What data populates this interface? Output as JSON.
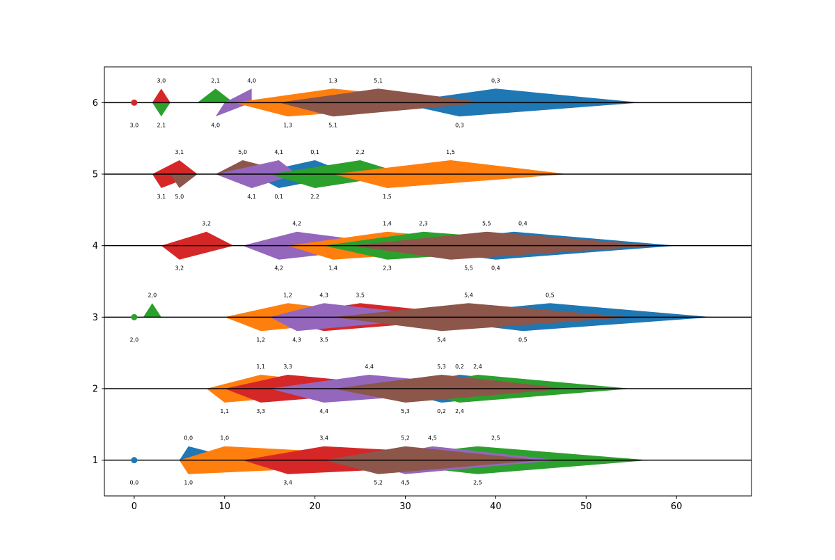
{
  "chart_data": {
    "type": "area",
    "title": "",
    "xlabel": "",
    "ylabel": "",
    "xlim": [
      -3.3,
      68.3
    ],
    "ylim": [
      0.5,
      6.5
    ],
    "x_ticks": [
      0,
      10,
      20,
      30,
      40,
      50,
      60
    ],
    "y_ticks": [
      1,
      2,
      3,
      4,
      5,
      6
    ],
    "grid": false,
    "legend": "none",
    "baselines": [
      1,
      2,
      3,
      4,
      5,
      6
    ],
    "dots": [
      {
        "y": 1,
        "x": 0,
        "color": "#1f77b4",
        "label": "0,0"
      },
      {
        "y": 3,
        "x": 0,
        "color": "#2ca02c",
        "label": "2,0"
      },
      {
        "y": 6,
        "x": 0,
        "color": "#d62728",
        "label": "3,0"
      }
    ],
    "shapes": [
      {
        "y": 1,
        "start": 5,
        "peak_up": 6,
        "peak_down": 6,
        "end": 12,
        "color": "#1f77b4",
        "label": "0,0",
        "bottom_label": "1,0"
      },
      {
        "y": 1,
        "start": 5,
        "peak_up": 10,
        "peak_down": 6,
        "end": 40,
        "color": "#ff7f0e",
        "label": "1,0",
        "bottom_label": "1,0"
      },
      {
        "y": 1,
        "start": 12,
        "peak_up": 21,
        "peak_down": 17,
        "end": 50,
        "color": "#d62728",
        "label": "3,4",
        "bottom_label": "3,4"
      },
      {
        "y": 1,
        "start": 24,
        "peak_up": 38,
        "peak_down": 38,
        "end": 57,
        "color": "#2ca02c",
        "label": "2,5",
        "bottom_label": "2,5"
      },
      {
        "y": 1,
        "start": 25,
        "peak_up": 33,
        "peak_down": 30,
        "end": 47,
        "color": "#9467bd",
        "label": "4,5",
        "bottom_label": "4,5"
      },
      {
        "y": 1,
        "start": 21,
        "peak_up": 30,
        "peak_down": 27,
        "end": 45,
        "color": "#8c564b",
        "label": "5,2",
        "bottom_label": "5,2"
      },
      {
        "y": 2,
        "start": 8,
        "peak_up": 14,
        "peak_down": 10,
        "end": 28,
        "color": "#ff7f0e",
        "label": "1,1",
        "bottom_label": "1,1"
      },
      {
        "y": 2,
        "start": 10,
        "peak_up": 17,
        "peak_down": 14,
        "end": 33,
        "color": "#d62728",
        "label": "3,3",
        "bottom_label": "3,3"
      },
      {
        "y": 2,
        "start": 15,
        "peak_up": 26,
        "peak_down": 21,
        "end": 42,
        "color": "#9467bd",
        "label": "4,4",
        "bottom_label": "4,4"
      },
      {
        "y": 2,
        "start": 28,
        "peak_up": 36,
        "peak_down": 34,
        "end": 50,
        "color": "#1f77b4",
        "label": "0,2",
        "bottom_label": "0,2"
      },
      {
        "y": 2,
        "start": 30,
        "peak_up": 38,
        "peak_down": 36,
        "end": 55,
        "color": "#2ca02c",
        "label": "2,4",
        "bottom_label": "2,4"
      },
      {
        "y": 2,
        "start": 22,
        "peak_up": 34,
        "peak_down": 30,
        "end": 48,
        "color": "#8c564b",
        "label": "5,3",
        "bottom_label": "5,3"
      },
      {
        "y": 3,
        "start": 1,
        "peak_up": 2,
        "peak_down": 2,
        "end": 3,
        "color": "#2ca02c",
        "label": "2,0",
        "bottom_label": "",
        "up_only": true
      },
      {
        "y": 3,
        "start": 10,
        "peak_up": 17,
        "peak_down": 14,
        "end": 30,
        "color": "#ff7f0e",
        "label": "1,2",
        "bottom_label": "1,2"
      },
      {
        "y": 3,
        "start": 15,
        "peak_up": 25,
        "peak_down": 21,
        "end": 40,
        "color": "#d62728",
        "label": "3,5",
        "bottom_label": "3,5"
      },
      {
        "y": 3,
        "start": 15,
        "peak_up": 21,
        "peak_down": 18,
        "end": 35,
        "color": "#9467bd",
        "label": "4,3",
        "bottom_label": "4,3"
      },
      {
        "y": 3,
        "start": 30,
        "peak_up": 46,
        "peak_down": 43,
        "end": 64,
        "color": "#1f77b4",
        "label": "0,5",
        "bottom_label": "0,5"
      },
      {
        "y": 3,
        "start": 22,
        "peak_up": 37,
        "peak_down": 34,
        "end": 55,
        "color": "#8c564b",
        "label": "5,4",
        "bottom_label": "5,4"
      },
      {
        "y": 4,
        "start": 3,
        "peak_up": 8,
        "peak_down": 5,
        "end": 11,
        "color": "#d62728",
        "label": "3,2",
        "bottom_label": "3,2"
      },
      {
        "y": 4,
        "start": 12,
        "peak_up": 18,
        "peak_down": 16,
        "end": 30,
        "color": "#9467bd",
        "label": "4,2",
        "bottom_label": "4,2"
      },
      {
        "y": 4,
        "start": 17,
        "peak_up": 28,
        "peak_down": 22,
        "end": 45,
        "color": "#ff7f0e",
        "label": "1,4",
        "bottom_label": "1,4"
      },
      {
        "y": 4,
        "start": 21,
        "peak_up": 32,
        "peak_down": 28,
        "end": 52,
        "color": "#2ca02c",
        "label": "2,3",
        "bottom_label": "2,3"
      },
      {
        "y": 4,
        "start": 28,
        "peak_up": 42,
        "peak_down": 40,
        "end": 60,
        "color": "#1f77b4",
        "label": "0,4",
        "bottom_label": "0,4"
      },
      {
        "y": 4,
        "start": 24,
        "peak_up": 39,
        "peak_down": 35,
        "end": 58,
        "color": "#8c564b",
        "label": "5,5",
        "bottom_label": "5,5"
      },
      {
        "y": 5,
        "start": 2,
        "peak_up": 5,
        "peak_down": 3,
        "end": 7,
        "color": "#d62728",
        "label": "3,1",
        "bottom_label": "3,1"
      },
      {
        "y": 5,
        "start": 4,
        "peak_up": 5,
        "peak_down": 5,
        "end": 7,
        "color": "#8c564b",
        "label": "",
        "bottom_label": "5,0",
        "down_only": true
      },
      {
        "y": 5,
        "start": 9,
        "peak_up": 12,
        "peak_down": 13,
        "end": 18,
        "color": "#8c564b",
        "label": "5,0",
        "bottom_label": "4,1"
      },
      {
        "y": 5,
        "start": 13,
        "peak_up": 20,
        "peak_down": 16,
        "end": 24,
        "color": "#1f77b4",
        "label": "0,1",
        "bottom_label": "0,1"
      },
      {
        "y": 5,
        "start": 9,
        "peak_up": 16,
        "peak_down": 13,
        "end": 18,
        "color": "#9467bd",
        "label": "4,1",
        "bottom_label": "4,1"
      },
      {
        "y": 5,
        "start": 15,
        "peak_up": 25,
        "peak_down": 20,
        "end": 30,
        "color": "#2ca02c",
        "label": "2,2",
        "bottom_label": "2,2"
      },
      {
        "y": 5,
        "start": 22,
        "peak_up": 35,
        "peak_down": 28,
        "end": 48,
        "color": "#ff7f0e",
        "label": "1,5",
        "bottom_label": "1,5"
      },
      {
        "y": 6,
        "start": 2,
        "peak_up": 3,
        "peak_down": 3,
        "end": 4,
        "color": "#d62728",
        "label": "3,0",
        "bottom_label": "",
        "up_only": true
      },
      {
        "y": 6,
        "start": 2,
        "peak_up": 3,
        "peak_down": 3,
        "end": 4,
        "color": "#2ca02c",
        "label": "",
        "bottom_label": "2,1",
        "down_only": true
      },
      {
        "y": 6,
        "start": 7,
        "peak_up": 9,
        "peak_down": 9,
        "end": 11,
        "color": "#2ca02c",
        "label": "2,1",
        "bottom_label": "",
        "up_only": true
      },
      {
        "y": 6,
        "start": 10,
        "peak_up": 13,
        "peak_down": 9,
        "end": 13,
        "color": "#9467bd",
        "label": "4,0",
        "bottom_label": "4,0"
      },
      {
        "y": 6,
        "start": 11,
        "peak_up": 22,
        "peak_down": 17,
        "end": 38,
        "color": "#ff7f0e",
        "label": "1,3",
        "bottom_label": "1,3"
      },
      {
        "y": 6,
        "start": 29,
        "peak_up": 40,
        "peak_down": 36,
        "end": 56,
        "color": "#1f77b4",
        "label": "0,3",
        "bottom_label": "0,3"
      },
      {
        "y": 6,
        "start": 16,
        "peak_up": 27,
        "peak_down": 22,
        "end": 39,
        "color": "#8c564b",
        "label": "5,1",
        "bottom_label": "5,1"
      }
    ],
    "labels_top": [
      {
        "y": 6,
        "x": 3,
        "text": "3,0"
      },
      {
        "y": 6,
        "x": 9,
        "text": "2,1"
      },
      {
        "y": 6,
        "x": 13,
        "text": "4,0"
      },
      {
        "y": 6,
        "x": 22,
        "text": "1,3"
      },
      {
        "y": 6,
        "x": 27,
        "text": "5,1"
      },
      {
        "y": 6,
        "x": 40,
        "text": "0,3"
      },
      {
        "y": 5,
        "x": 5,
        "text": "3,1"
      },
      {
        "y": 5,
        "x": 12,
        "text": "5,0"
      },
      {
        "y": 5,
        "x": 16,
        "text": "4,1"
      },
      {
        "y": 5,
        "x": 20,
        "text": "0,1"
      },
      {
        "y": 5,
        "x": 25,
        "text": "2,2"
      },
      {
        "y": 5,
        "x": 35,
        "text": "1,5"
      },
      {
        "y": 4,
        "x": 8,
        "text": "3,2"
      },
      {
        "y": 4,
        "x": 18,
        "text": "4,2"
      },
      {
        "y": 4,
        "x": 28,
        "text": "1,4"
      },
      {
        "y": 4,
        "x": 32,
        "text": "2,3"
      },
      {
        "y": 4,
        "x": 39,
        "text": "5,5"
      },
      {
        "y": 4,
        "x": 43,
        "text": "0,4"
      },
      {
        "y": 3,
        "x": 2,
        "text": "2,0"
      },
      {
        "y": 3,
        "x": 17,
        "text": "1,2"
      },
      {
        "y": 3,
        "x": 21,
        "text": "4,3"
      },
      {
        "y": 3,
        "x": 25,
        "text": "3,5"
      },
      {
        "y": 3,
        "x": 37,
        "text": "5,4"
      },
      {
        "y": 3,
        "x": 46,
        "text": "0,5"
      },
      {
        "y": 2,
        "x": 14,
        "text": "1,1"
      },
      {
        "y": 2,
        "x": 17,
        "text": "3,3"
      },
      {
        "y": 2,
        "x": 26,
        "text": "4,4"
      },
      {
        "y": 2,
        "x": 34,
        "text": "5,3"
      },
      {
        "y": 2,
        "x": 36,
        "text": "0,2"
      },
      {
        "y": 2,
        "x": 38,
        "text": "2,4"
      },
      {
        "y": 1,
        "x": 6,
        "text": "0,0"
      },
      {
        "y": 1,
        "x": 10,
        "text": "1,0"
      },
      {
        "y": 1,
        "x": 21,
        "text": "3,4"
      },
      {
        "y": 1,
        "x": 30,
        "text": "5,2"
      },
      {
        "y": 1,
        "x": 33,
        "text": "4,5"
      },
      {
        "y": 1,
        "x": 40,
        "text": "2,5"
      }
    ],
    "labels_bottom": [
      {
        "y": 6,
        "x": 0,
        "text": "3,0"
      },
      {
        "y": 6,
        "x": 3,
        "text": "2,1"
      },
      {
        "y": 6,
        "x": 9,
        "text": "4,0"
      },
      {
        "y": 6,
        "x": 17,
        "text": "1,3"
      },
      {
        "y": 6,
        "x": 22,
        "text": "5,1"
      },
      {
        "y": 6,
        "x": 36,
        "text": "0,3"
      },
      {
        "y": 5,
        "x": 3,
        "text": "3,1"
      },
      {
        "y": 5,
        "x": 5,
        "text": "5,0"
      },
      {
        "y": 5,
        "x": 13,
        "text": "4,1"
      },
      {
        "y": 5,
        "x": 16,
        "text": "0,1"
      },
      {
        "y": 5,
        "x": 20,
        "text": "2,2"
      },
      {
        "y": 5,
        "x": 28,
        "text": "1,5"
      },
      {
        "y": 4,
        "x": 5,
        "text": "3,2"
      },
      {
        "y": 4,
        "x": 16,
        "text": "4,2"
      },
      {
        "y": 4,
        "x": 22,
        "text": "1,4"
      },
      {
        "y": 4,
        "x": 28,
        "text": "2,3"
      },
      {
        "y": 4,
        "x": 37,
        "text": "5,5"
      },
      {
        "y": 4,
        "x": 40,
        "text": "0,4"
      },
      {
        "y": 3,
        "x": 0,
        "text": "2,0"
      },
      {
        "y": 3,
        "x": 14,
        "text": "1,2"
      },
      {
        "y": 3,
        "x": 18,
        "text": "4,3"
      },
      {
        "y": 3,
        "x": 21,
        "text": "3,5"
      },
      {
        "y": 3,
        "x": 34,
        "text": "5,4"
      },
      {
        "y": 3,
        "x": 43,
        "text": "0,5"
      },
      {
        "y": 2,
        "x": 10,
        "text": "1,1"
      },
      {
        "y": 2,
        "x": 14,
        "text": "3,3"
      },
      {
        "y": 2,
        "x": 21,
        "text": "4,4"
      },
      {
        "y": 2,
        "x": 30,
        "text": "5,3"
      },
      {
        "y": 2,
        "x": 34,
        "text": "0,2"
      },
      {
        "y": 2,
        "x": 36,
        "text": "2,4"
      },
      {
        "y": 1,
        "x": 0,
        "text": "0,0"
      },
      {
        "y": 1,
        "x": 6,
        "text": "1,0"
      },
      {
        "y": 1,
        "x": 17,
        "text": "3,4"
      },
      {
        "y": 1,
        "x": 27,
        "text": "5,2"
      },
      {
        "y": 1,
        "x": 30,
        "text": "4,5"
      },
      {
        "y": 1,
        "x": 38,
        "text": "2,5"
      }
    ]
  }
}
